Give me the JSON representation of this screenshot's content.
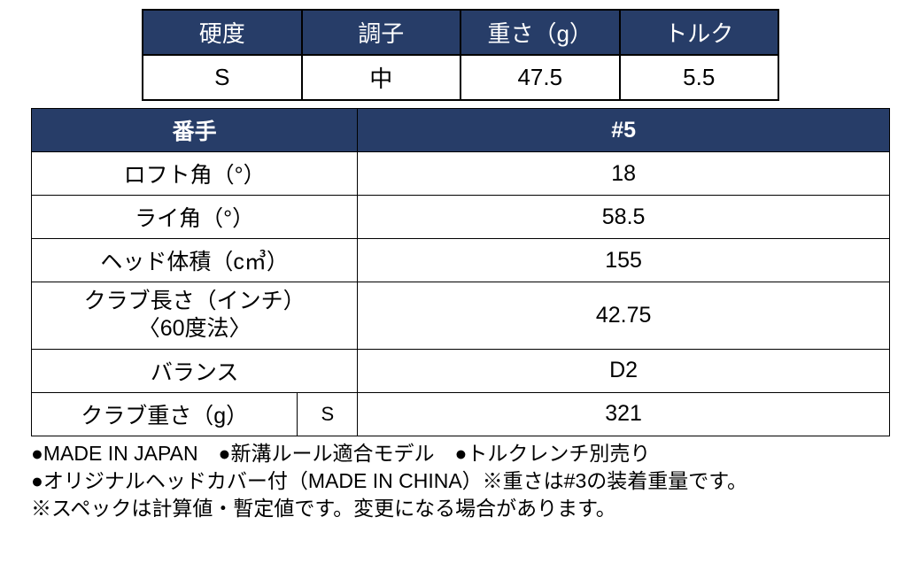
{
  "colors": {
    "header_bg": "#273d68",
    "header_fg": "#ffffff",
    "border": "#000000",
    "body_bg": "#ffffff",
    "text": "#000000"
  },
  "table1": {
    "headers": [
      "硬度",
      "調子",
      "重さ（g）",
      "トルク"
    ],
    "row": [
      "S",
      "中",
      "47.5",
      "5.5"
    ]
  },
  "table2": {
    "headerLabel": "番手",
    "headerValue": "#5",
    "rows": [
      {
        "label": "ロフト角（°）",
        "value": "18"
      },
      {
        "label": "ライ角（°）",
        "value": "58.5"
      },
      {
        "label": "ヘッド体積（c㎥）",
        "value": "155"
      },
      {
        "label": "クラブ長さ（インチ）\n〈60度法〉",
        "value": "42.75",
        "multiline": true
      },
      {
        "label": "バランス",
        "value": "D2"
      }
    ],
    "splitRow": {
      "labelA": "クラブ重さ（g）",
      "labelB": "S",
      "value": "321"
    }
  },
  "notes": {
    "line1": "●MADE IN JAPAN　●新溝ルール適合モデル　●トルクレンチ別売り",
    "line2": "●オリジナルヘッドカバー付（MADE IN CHINA）※重さは#3の装着重量です。",
    "line3": "※スペックは計算値・暫定値です。変更になる場合があります。"
  }
}
